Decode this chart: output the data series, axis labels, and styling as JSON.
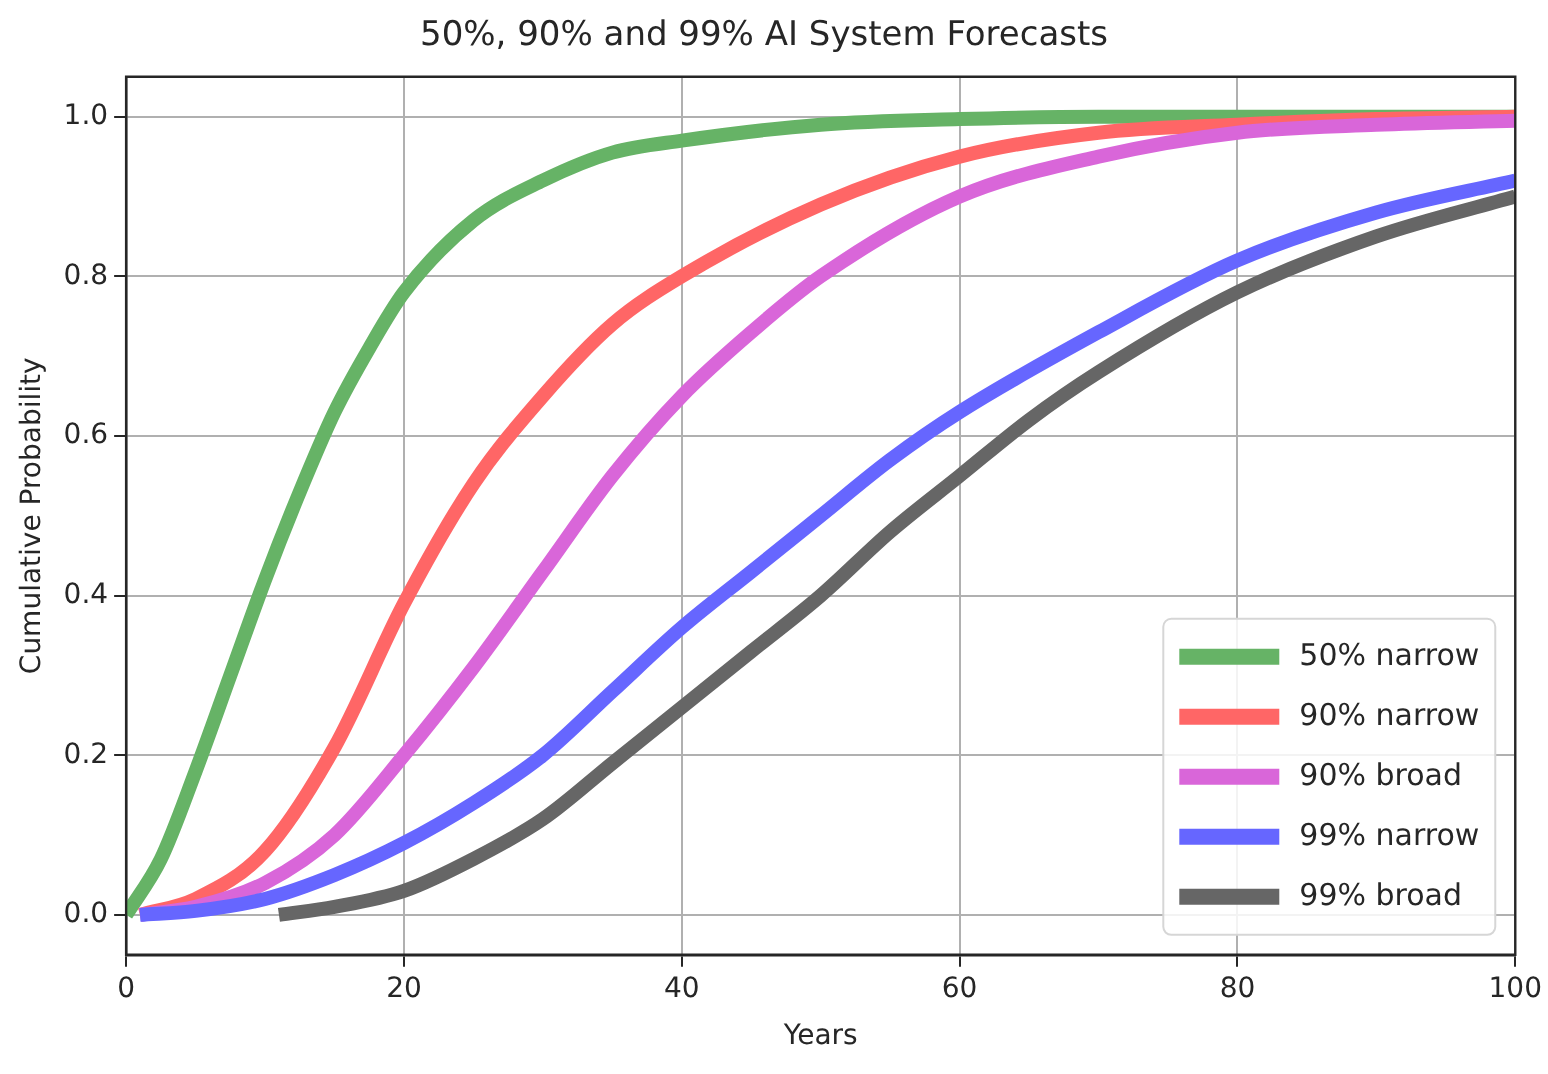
{
  "chart_data": {
    "type": "line",
    "title": "50%, 90% and 99% AI System Forecasts",
    "xlabel": "Years",
    "ylabel": "Cumulative Probability",
    "xlim": [
      0,
      100
    ],
    "xticks": [
      0,
      20,
      40,
      60,
      80,
      100
    ],
    "ylim": [
      -0.05,
      1.05
    ],
    "yticks": [
      {
        "value": 0,
        "label": "0.0"
      },
      {
        "value": 0.2,
        "label": "0.2"
      },
      {
        "value": 0.4,
        "label": "0.4"
      },
      {
        "value": 0.6,
        "label": "0.6"
      },
      {
        "value": 0.8,
        "label": "0.8"
      },
      {
        "value": 1,
        "label": "1.0"
      }
    ],
    "grid": true,
    "legend": "bottom right",
    "line_style": "solid",
    "marker": "none",
    "series": [
      {
        "name": "50% narrow",
        "color": "#66b366",
        "x": [
          0,
          2.5,
          5,
          7.5,
          10,
          12.5,
          15,
          17.5,
          20,
          25,
          30,
          35,
          40,
          50,
          60,
          70,
          80,
          100
        ],
        "values": [
          0,
          0.07,
          0.18,
          0.3,
          0.42,
          0.53,
          0.63,
          0.71,
          0.78,
          0.87,
          0.92,
          0.955,
          0.97,
          0.99,
          0.997,
          1,
          1,
          1
        ]
      },
      {
        "name": "90% narrow",
        "color": "#ff6666",
        "x": [
          1,
          5,
          10,
          15,
          20,
          25,
          30,
          35,
          40,
          50,
          60,
          70,
          80,
          90,
          100
        ],
        "values": [
          0,
          0.02,
          0.08,
          0.21,
          0.39,
          0.54,
          0.65,
          0.74,
          0.8,
          0.89,
          0.95,
          0.98,
          0.99,
          0.997,
          1
        ]
      },
      {
        "name": "90% broad",
        "color": "#d966d9",
        "x": [
          1,
          5,
          10,
          15,
          20,
          25,
          30,
          35,
          40,
          45,
          50,
          60,
          70,
          80,
          90,
          100
        ],
        "values": [
          0,
          0.01,
          0.04,
          0.1,
          0.2,
          0.31,
          0.43,
          0.55,
          0.65,
          0.73,
          0.8,
          0.9,
          0.95,
          0.98,
          0.99,
          0.995
        ]
      },
      {
        "name": "99% narrow",
        "color": "#6666ff",
        "x": [
          1,
          5,
          10,
          15,
          20,
          25,
          30,
          35,
          40,
          45,
          50,
          55,
          60,
          70,
          80,
          90,
          100
        ],
        "values": [
          0,
          0.005,
          0.02,
          0.05,
          0.09,
          0.14,
          0.2,
          0.28,
          0.36,
          0.43,
          0.5,
          0.57,
          0.63,
          0.73,
          0.82,
          0.88,
          0.92
        ]
      },
      {
        "name": "99% broad",
        "color": "#666666",
        "x": [
          11,
          15,
          20,
          25,
          30,
          35,
          40,
          45,
          50,
          55,
          60,
          65,
          70,
          80,
          90,
          100
        ],
        "values": [
          0,
          0.01,
          0.03,
          0.07,
          0.12,
          0.19,
          0.26,
          0.33,
          0.4,
          0.48,
          0.55,
          0.62,
          0.68,
          0.78,
          0.85,
          0.9
        ]
      }
    ]
  }
}
